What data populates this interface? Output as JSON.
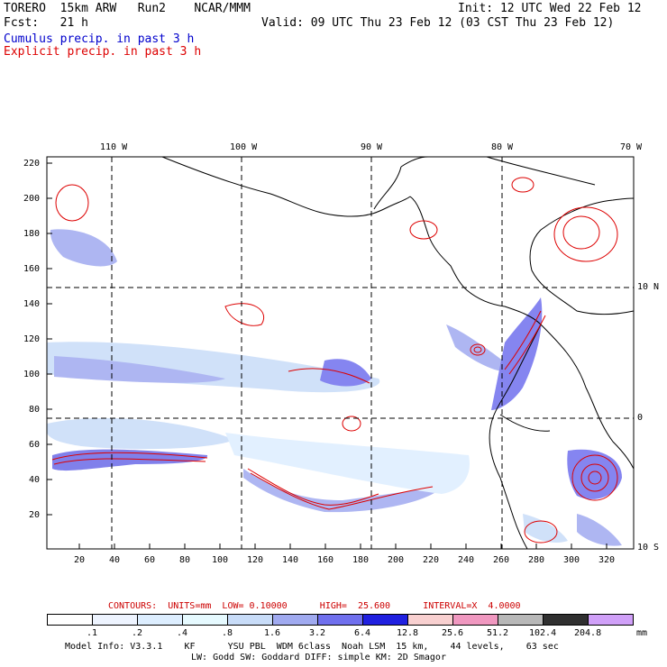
{
  "header": {
    "model": "TORERO  15km ARW   Run2    NCAR/MMM",
    "init": "Init: 12 UTC Wed 22 Feb 12",
    "fcst": "Fcst:   21 h",
    "valid": "Valid: 09 UTC Thu 23 Feb 12 (03 CST Thu 23 Feb 12)",
    "field1": "Cumulus precip. in past 3 h",
    "field2": "Explicit precip. in past 3 h",
    "field1_color": "#0000cc",
    "field2_color": "#dd0000"
  },
  "map": {
    "lon_labels": [
      "110 W",
      "100 W",
      "90 W",
      "80 W",
      "70 W"
    ],
    "lat_labels": [
      "10 N",
      "0",
      "10 S"
    ],
    "y_ticks": [
      "220",
      "200",
      "180",
      "160",
      "140",
      "120",
      "100",
      "80",
      "60",
      "40",
      "20"
    ],
    "x_ticks": [
      "20",
      "40",
      "60",
      "80",
      "100",
      "120",
      "140",
      "160",
      "180",
      "200",
      "220",
      "240",
      "260",
      "280",
      "300",
      "320"
    ]
  },
  "contours_info": {
    "label": "CONTOURS:  UNITS=mm  LOW= 0.10000      HIGH=  25.600      INTERVAL=X  4.0000",
    "color": "#cc0000"
  },
  "colorbar": {
    "labels": [
      ".1",
      ".2",
      ".4",
      ".8",
      "1.6",
      "3.2",
      "6.4",
      "12.8",
      "25.6",
      "51.2",
      "102.4",
      "204.8"
    ],
    "units": "mm",
    "colors": [
      "#ffffff",
      "#eef4ff",
      "#ddeeff",
      "#e6faff",
      "#c8dcf8",
      "#a0aaf0",
      "#7070ee",
      "#2020e0",
      "#f8d0d0",
      "#f098c0",
      "#b8b8b8",
      "#303030",
      "#d0a0f8"
    ]
  },
  "footer": {
    "line1": "Model Info: V3.3.1    KF      YSU PBL  WDM 6class  Noah LSM  15 km,    44 levels,    63 sec",
    "line2": "LW: Godd SW: Goddard DIFF: simple KM: 2D Smagor"
  }
}
